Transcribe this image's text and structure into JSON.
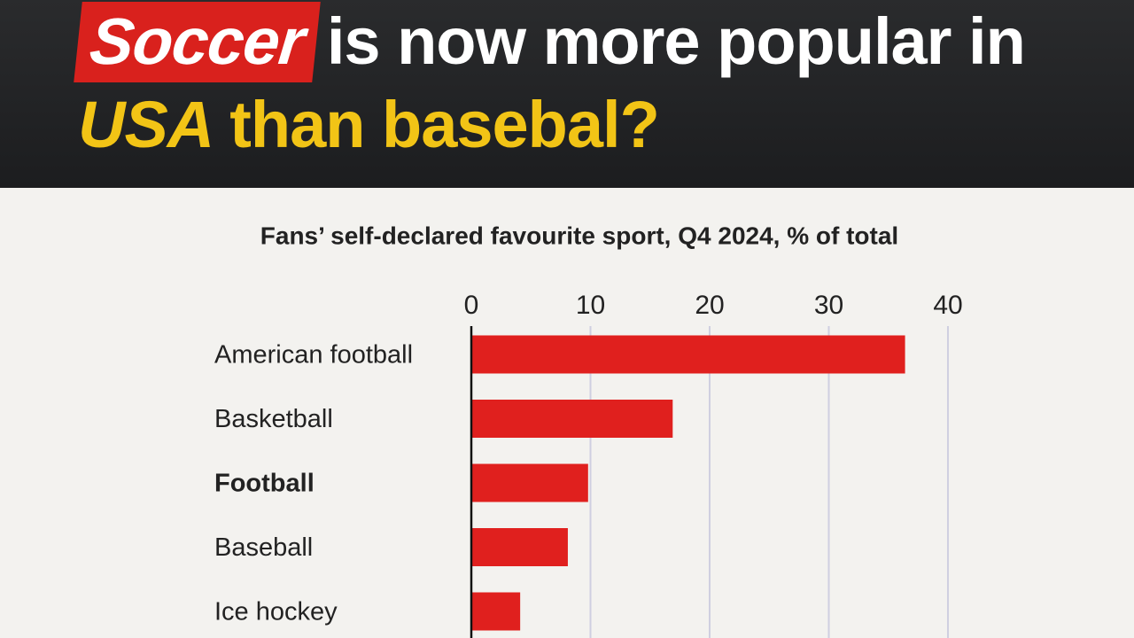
{
  "chart_data": {
    "type": "bar",
    "orientation": "horizontal",
    "title": [
      "Soccer",
      "is now more popular in",
      "USA",
      "than basebal?"
    ],
    "subtitle": "Fans’ self-declared favourite sport, Q4 2024, % of total",
    "categories": [
      "American football",
      "Basketball",
      "Football",
      "Baseball",
      "Ice hockey"
    ],
    "category_weights": [
      "normal",
      "normal",
      "bold",
      "normal",
      "normal"
    ],
    "values": [
      36.4,
      16.9,
      9.8,
      8.1,
      4.1
    ],
    "color": "#e0201e",
    "xlim": [
      0,
      40
    ],
    "xticks": [
      0,
      10,
      20,
      30,
      40
    ],
    "grid": true
  }
}
